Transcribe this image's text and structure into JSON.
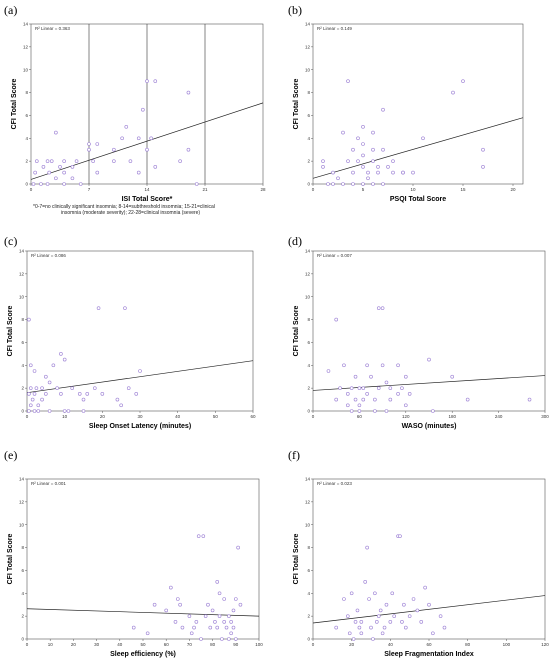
{
  "chart_data": [
    {
      "panel": "(a)",
      "type": "scatter",
      "xlabel": "ISI Total Score*",
      "ylabel": "CFI Total Score",
      "r_label": "R² Linear = 0.363",
      "xlim": [
        0,
        28
      ],
      "ylim": [
        0,
        14
      ],
      "xticks": [
        "0",
        "7",
        "14",
        "21",
        "28"
      ],
      "yticks": [
        "0",
        "2",
        "4",
        "6",
        "8",
        "10",
        "12",
        "14"
      ],
      "vlines": [
        7,
        14,
        21
      ],
      "fit": {
        "start": [
          0,
          0.4
        ],
        "end": [
          28,
          7.1
        ]
      },
      "footnote": [
        "*0-7=no clinically significant insomnia; 8-14=subthreshold insomnia; 15-21=clinical",
        "insomnia (moderate severity); 22-28=clinical insomnia (severe)"
      ],
      "x": [
        0.3,
        0.5,
        0.7,
        1.2,
        1.5,
        2,
        2,
        2.2,
        2.5,
        3,
        3,
        3.5,
        4,
        4,
        4,
        5,
        5,
        5.5,
        6,
        7,
        7,
        7.5,
        8,
        8,
        10,
        10,
        11,
        11.5,
        12,
        13,
        13,
        13.5,
        14,
        14,
        14.5,
        15,
        15,
        18,
        19,
        19,
        20
      ],
      "y": [
        0,
        1,
        2,
        0,
        1.5,
        0,
        2,
        1,
        2,
        0.5,
        4.5,
        1.5,
        2,
        0,
        1,
        1.5,
        0.5,
        2,
        0,
        3,
        3.5,
        2,
        1,
        3.5,
        2,
        3,
        4,
        5,
        2,
        1,
        4,
        6.5,
        9,
        3,
        4,
        1.5,
        9,
        2,
        8,
        3,
        0
      ]
    },
    {
      "panel": "(b)",
      "type": "scatter",
      "xlabel": "PSQI Total Score",
      "ylabel": "CFI Total Score",
      "r_label": "R² Linear = 0.149",
      "xlim": [
        0,
        21
      ],
      "ylim": [
        0,
        14
      ],
      "xticks": [
        "0",
        "5",
        "10",
        "15",
        "20"
      ],
      "yticks": [
        "0",
        "2",
        "4",
        "6",
        "8",
        "10",
        "12",
        "14"
      ],
      "fit": {
        "start": [
          0,
          0.5
        ],
        "end": [
          21,
          5.8
        ]
      },
      "x": [
        1,
        1,
        1.5,
        2,
        2,
        2.5,
        3,
        3,
        3.5,
        3.5,
        4,
        4,
        4,
        4.5,
        4.5,
        5,
        5,
        5,
        5,
        5,
        5.5,
        5.5,
        6,
        6,
        6,
        6,
        6.5,
        6.5,
        7,
        7,
        7,
        7.5,
        8,
        8,
        9,
        9,
        10,
        11,
        14,
        15,
        17,
        17
      ],
      "y": [
        1.5,
        2,
        0,
        1,
        0,
        0.5,
        4.5,
        0,
        2,
        9,
        1,
        3,
        0,
        4,
        2,
        5,
        3.5,
        2.5,
        1.5,
        0,
        1,
        0.5,
        4.5,
        3,
        2,
        0,
        1,
        1.5,
        6.5,
        3,
        0,
        1.5,
        2,
        1,
        1,
        1,
        1,
        4,
        8,
        9,
        3,
        1.5
      ]
    },
    {
      "panel": "(c)",
      "type": "scatter",
      "xlabel": "Sleep Onset Latency (minutes)",
      "ylabel": "CFI Total Score",
      "r_label": "R² Linear = 0.086",
      "xlim": [
        0,
        60
      ],
      "ylim": [
        0,
        14
      ],
      "xticks": [
        "0",
        "10",
        "20",
        "30",
        "40",
        "50",
        "60"
      ],
      "yticks": [
        "0",
        "2",
        "4",
        "6",
        "8",
        "10",
        "12",
        "14"
      ],
      "fit": {
        "start": [
          0,
          1.6
        ],
        "end": [
          60,
          4.4
        ]
      },
      "x": [
        0.5,
        0.5,
        0.5,
        1,
        1,
        1,
        1.5,
        2,
        2,
        2,
        2.5,
        3,
        3,
        4,
        4,
        5,
        5,
        6,
        6,
        7,
        8,
        9,
        9,
        10,
        10,
        11,
        12,
        14,
        15,
        15,
        16,
        18,
        19,
        20,
        24,
        25,
        26,
        27,
        29,
        30
      ],
      "y": [
        0,
        1.5,
        8,
        0.5,
        2,
        4,
        1,
        0,
        1.5,
        3.5,
        2,
        0.5,
        0,
        1,
        2,
        1.5,
        3,
        0,
        2.5,
        4,
        2,
        5,
        1.5,
        0,
        4.5,
        0,
        2,
        1.5,
        1,
        0,
        1.5,
        2,
        9,
        1.5,
        1,
        0.5,
        9,
        2,
        1.5,
        3.5
      ]
    },
    {
      "panel": "(d)",
      "type": "scatter",
      "xlabel": "WASO (minutes)",
      "ylabel": "CFI Total Score",
      "r_label": "R² Linear = 0.007",
      "xlim": [
        0,
        300
      ],
      "ylim": [
        0,
        14
      ],
      "xticks": [
        "0",
        "60",
        "120",
        "180",
        "240",
        "300"
      ],
      "yticks": [
        "0",
        "2",
        "4",
        "6",
        "8",
        "10",
        "12",
        "14"
      ],
      "fit": {
        "start": [
          0,
          1.8
        ],
        "end": [
          300,
          3.1
        ]
      },
      "x": [
        20,
        30,
        30,
        35,
        40,
        45,
        45,
        50,
        50,
        55,
        55,
        60,
        60,
        60,
        65,
        65,
        70,
        70,
        75,
        80,
        80,
        85,
        85,
        90,
        90,
        95,
        95,
        100,
        100,
        110,
        110,
        115,
        120,
        120,
        125,
        150,
        155,
        180,
        200,
        280
      ],
      "y": [
        3.5,
        1,
        8,
        2,
        4,
        0.5,
        1.5,
        2,
        0,
        1,
        3,
        2,
        0.5,
        0,
        1,
        2,
        4,
        1.5,
        3,
        1,
        0,
        9,
        2,
        9,
        4,
        0,
        2.5,
        2,
        1,
        4,
        1.5,
        2,
        3,
        0.5,
        1.5,
        4.5,
        0,
        3,
        1,
        1
      ]
    },
    {
      "panel": "(e)",
      "type": "scatter",
      "xlabel": "Sleep efficiency (%)",
      "ylabel": "CFI Total Score",
      "r_label": "R² Linear = 0.001",
      "xlim": [
        0,
        100
      ],
      "ylim": [
        0,
        14
      ],
      "xticks": [
        "0",
        "10",
        "20",
        "30",
        "40",
        "50",
        "60",
        "70",
        "80",
        "90",
        "100"
      ],
      "yticks": [
        "0",
        "2",
        "4",
        "6",
        "8",
        "10",
        "12",
        "14"
      ],
      "fit": {
        "start": [
          0,
          2.65
        ],
        "end": [
          100,
          2.0
        ]
      },
      "x": [
        46,
        52,
        55,
        60,
        62,
        64,
        65,
        66,
        67,
        70,
        71,
        72,
        73,
        74,
        75,
        76,
        77,
        78,
        79,
        80,
        81,
        82,
        82,
        83,
        83,
        84,
        85,
        85,
        86,
        87,
        87,
        88,
        88,
        89,
        89,
        90,
        90,
        91,
        92
      ],
      "y": [
        1,
        0.5,
        3,
        2.5,
        4.5,
        1.5,
        3.5,
        3,
        1,
        2,
        0.5,
        1,
        1.5,
        9,
        0,
        9,
        2,
        3,
        1,
        2.5,
        1.5,
        1,
        5,
        2,
        4,
        0,
        1.5,
        3.5,
        1,
        2,
        0,
        1.5,
        0.5,
        1,
        2.5,
        0,
        3.5,
        8,
        3
      ]
    },
    {
      "panel": "(f)",
      "type": "scatter",
      "xlabel": "Sleep Fragmentation Index",
      "ylabel": "CFI Total Score",
      "r_label": "R² Linear = 0.023",
      "xlim": [
        0,
        120
      ],
      "ylim": [
        0,
        14
      ],
      "xticks": [
        "0",
        "20",
        "40",
        "60",
        "80",
        "100",
        "120"
      ],
      "yticks": [
        "0",
        "2",
        "4",
        "6",
        "8",
        "10",
        "12",
        "14"
      ],
      "fit": {
        "start": [
          0,
          1.4
        ],
        "end": [
          120,
          3.8
        ]
      },
      "x": [
        12,
        16,
        18,
        19,
        20,
        21,
        22,
        23,
        24,
        25,
        25,
        27,
        28,
        29,
        30,
        31,
        32,
        33,
        34,
        35,
        36,
        37,
        38,
        40,
        41,
        42,
        44,
        45,
        46,
        47,
        48,
        50,
        52,
        54,
        56,
        58,
        60,
        62,
        66,
        68
      ],
      "y": [
        1,
        3.5,
        2,
        0.5,
        4,
        0,
        1.5,
        2.5,
        1,
        0.5,
        1.5,
        5,
        8,
        3.5,
        1,
        0,
        4,
        1.5,
        2,
        2.5,
        0.5,
        1,
        3,
        1.5,
        4,
        2,
        9,
        9,
        1.5,
        3,
        1,
        2,
        3.5,
        2.5,
        1.5,
        4.5,
        3,
        0.5,
        2,
        1
      ]
    }
  ]
}
